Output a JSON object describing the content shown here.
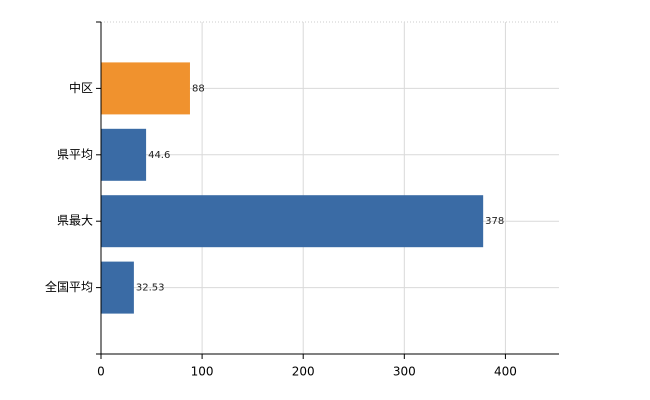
{
  "chart_data": {
    "type": "bar",
    "orientation": "horizontal",
    "categories": [
      "中区",
      "県平均",
      "県最大",
      "全国平均"
    ],
    "values": [
      88,
      44.6,
      378,
      32.53
    ],
    "colors": [
      "#f0922e",
      "#3a6ba5",
      "#3a6ba5",
      "#3a6ba5"
    ],
    "xlim": [
      0,
      453
    ],
    "xticks": [
      0,
      100,
      200,
      300,
      400
    ],
    "grid": true
  }
}
